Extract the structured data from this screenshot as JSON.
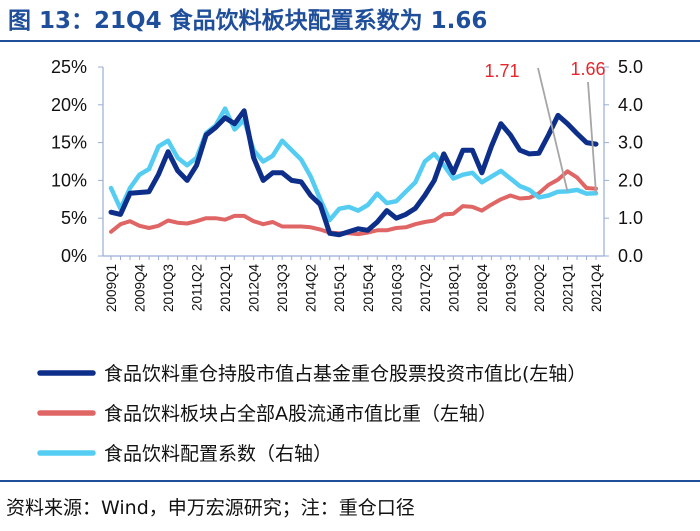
{
  "title": "图 13：21Q4 食品饮料板块配置系数为 1.66",
  "source": "资料来源：Wind，申万宏源研究；注：重仓口径",
  "colors": {
    "brand": "#1f4e9a",
    "series_dark": "#0d2f8a",
    "series_red": "#e06666",
    "series_cyan": "#55cdf2",
    "annotation": "#e8262c"
  },
  "chart_data": {
    "type": "line",
    "x": [
      "2009Q1",
      "2009Q2",
      "2009Q3",
      "2009Q4",
      "2010Q1",
      "2010Q2",
      "2010Q3",
      "2010Q4",
      "2011Q1",
      "2011Q2",
      "2011Q3",
      "2011Q4",
      "2012Q1",
      "2012Q2",
      "2012Q3",
      "2012Q4",
      "2013Q1",
      "2013Q2",
      "2013Q3",
      "2013Q4",
      "2014Q1",
      "2014Q2",
      "2014Q3",
      "2014Q4",
      "2015Q1",
      "2015Q2",
      "2015Q3",
      "2015Q4",
      "2016Q1",
      "2016Q2",
      "2016Q3",
      "2016Q4",
      "2017Q1",
      "2017Q2",
      "2017Q3",
      "2017Q4",
      "2018Q1",
      "2018Q2",
      "2018Q3",
      "2018Q4",
      "2019Q1",
      "2019Q2",
      "2019Q3",
      "2019Q4",
      "2020Q1",
      "2020Q2",
      "2020Q3",
      "2020Q4",
      "2021Q1",
      "2021Q2",
      "2021Q3",
      "2021Q4"
    ],
    "xticks": [
      "2009Q1",
      "2009Q4",
      "2010Q3",
      "2011Q2",
      "2012Q1",
      "2012Q4",
      "2013Q3",
      "2014Q2",
      "2015Q1",
      "2015Q4",
      "2016Q3",
      "2017Q2",
      "2018Q1",
      "2018Q4",
      "2019Q3",
      "2020Q2",
      "2021Q1",
      "2021Q4"
    ],
    "series": [
      {
        "name": "食品饮料重仓持股市值占基金重仓股票投资市值比(左轴）",
        "axis": "left",
        "values": [
          5.8,
          5.5,
          8.3,
          8.4,
          8.5,
          10.8,
          13.8,
          11.3,
          10.0,
          12.0,
          16.0,
          17.0,
          18.3,
          17.5,
          19.2,
          13.0,
          10.0,
          11.0,
          11.0,
          10.0,
          9.8,
          8.0,
          6.8,
          3.0,
          2.8,
          3.2,
          3.6,
          3.4,
          4.5,
          6.0,
          5.0,
          5.5,
          6.3,
          8.0,
          10.0,
          13.5,
          11.0,
          14.0,
          14.0,
          11.0,
          14.5,
          17.5,
          16.0,
          14.0,
          13.5,
          13.6,
          16.0,
          18.6,
          17.5,
          16.2,
          15.0,
          14.8
        ]
      },
      {
        "name": "食品饮料板块占全部A股流通市值比重（左轴）",
        "axis": "left",
        "values": [
          3.2,
          4.2,
          4.6,
          4.0,
          3.7,
          4.0,
          4.7,
          4.4,
          4.3,
          4.6,
          5.0,
          5.0,
          4.8,
          5.3,
          5.3,
          4.6,
          4.2,
          4.5,
          3.9,
          3.9,
          3.9,
          3.8,
          3.5,
          3.1,
          3.0,
          3.0,
          2.9,
          3.1,
          3.4,
          3.4,
          3.7,
          3.8,
          4.2,
          4.5,
          4.7,
          5.5,
          5.6,
          6.6,
          6.5,
          6.0,
          6.8,
          7.5,
          8.0,
          7.6,
          7.7,
          8.3,
          9.4,
          10.1,
          11.2,
          10.4,
          9.0,
          8.9
        ]
      },
      {
        "name": "食品饮料配置系数（右轴）",
        "axis": "right",
        "values": [
          1.8,
          1.25,
          1.8,
          2.15,
          2.3,
          2.9,
          3.05,
          2.6,
          2.4,
          2.6,
          3.25,
          3.45,
          3.9,
          3.35,
          3.6,
          2.8,
          2.5,
          2.65,
          3.05,
          2.8,
          2.55,
          2.1,
          1.5,
          0.95,
          1.25,
          1.3,
          1.2,
          1.35,
          1.65,
          1.4,
          1.45,
          1.7,
          1.95,
          2.5,
          2.7,
          2.4,
          2.05,
          2.15,
          2.2,
          1.95,
          2.1,
          2.25,
          2.05,
          1.85,
          1.75,
          1.55,
          1.6,
          1.7,
          1.71,
          1.75,
          1.65,
          1.66
        ]
      }
    ],
    "ylim_left": [
      0,
      25
    ],
    "yticks_left": [
      "0%",
      "5%",
      "10%",
      "15%",
      "20%",
      "25%"
    ],
    "ylim_right": [
      0,
      5
    ],
    "yticks_right": [
      "0.0",
      "1.0",
      "2.0",
      "3.0",
      "4.0",
      "5.0"
    ],
    "annotations": [
      {
        "text": "1.71",
        "x": "2021Q1"
      },
      {
        "text": "1.66",
        "x": "2021Q4"
      }
    ],
    "legend_position": "bottom",
    "grid": false
  }
}
